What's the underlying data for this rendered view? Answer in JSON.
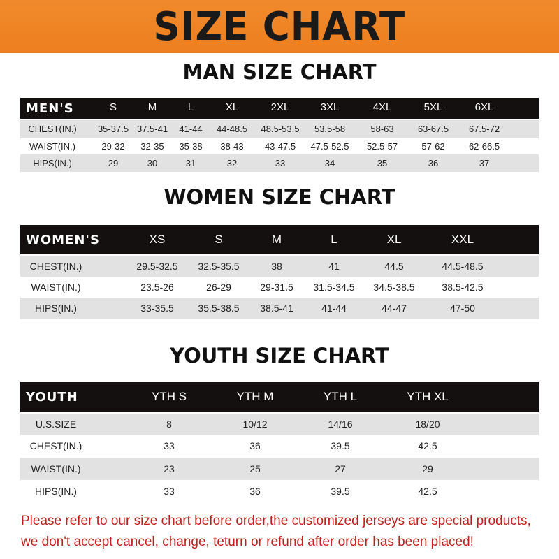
{
  "title": "SIZE CHART",
  "men": {
    "heading": "MAN SIZE CHART",
    "header": [
      "MEN'S",
      "S",
      "M",
      "L",
      "XL",
      "2XL",
      "3XL",
      "4XL",
      "5XL",
      "6XL"
    ],
    "rows": [
      [
        "CHEST(IN.)",
        "35-37.5",
        "37.5-41",
        "41-44",
        "44-48.5",
        "48.5-53.5",
        "53.5-58",
        "58-63",
        "63-67.5",
        "67.5-72"
      ],
      [
        "WAIST(IN.)",
        "29-32",
        "32-35",
        "35-38",
        "38-43",
        "43-47.5",
        "47.5-52.5",
        "52.5-57",
        "57-62",
        "62-66.5"
      ],
      [
        "HIPS(IN.)",
        "29",
        "30",
        "31",
        "32",
        "33",
        "34",
        "35",
        "36",
        "37"
      ]
    ]
  },
  "women": {
    "heading": "WOMEN SIZE CHART",
    "header": [
      "WOMEN'S",
      "XS",
      "S",
      "M",
      "L",
      "XL",
      "XXL"
    ],
    "rows": [
      [
        "CHEST(IN.)",
        "29.5-32.5",
        "32.5-35.5",
        "38",
        "41",
        "44.5",
        "44.5-48.5"
      ],
      [
        "WAIST(IN.)",
        "23.5-26",
        "26-29",
        "29-31.5",
        "31.5-34.5",
        "34.5-38.5",
        "38.5-42.5"
      ],
      [
        "HIPS(IN.)",
        "33-35.5",
        "35.5-38.5",
        "38.5-41",
        "41-44",
        "44-47",
        "47-50"
      ]
    ]
  },
  "youth": {
    "heading": "YOUTH SIZE CHART",
    "header": [
      "YOUTH",
      "YTH S",
      "YTH M",
      "YTH L",
      "YTH XL"
    ],
    "rows": [
      [
        "U.S.SIZE",
        "8",
        "10/12",
        "14/16",
        "18/20"
      ],
      [
        "CHEST(IN.)",
        "33",
        "36",
        "39.5",
        "42.5"
      ],
      [
        "WAIST(IN.)",
        "23",
        "25",
        "27",
        "29"
      ],
      [
        "HIPS(IN.)",
        "33",
        "36",
        "39.5",
        "42.5"
      ]
    ]
  },
  "notice": [
    "Please refer to our size chart before order,the customized jerseys are special products,",
    "we don't accept cancel, change, teturn or refund after order has been placed!"
  ],
  "colors": {
    "banner": "#ee7f1f",
    "header_bar": "#141010",
    "stripe": "#e2e2e2",
    "notice": "#c0201e"
  }
}
